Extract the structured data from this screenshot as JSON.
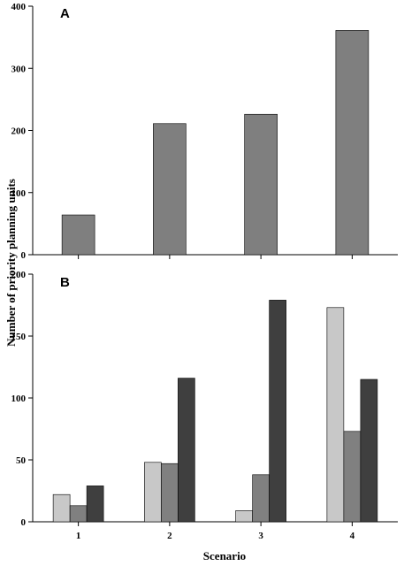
{
  "chart_data": [
    {
      "panel": "A",
      "type": "bar",
      "categories": [
        "1",
        "2",
        "3",
        "4"
      ],
      "series": [
        {
          "values": [
            64,
            211,
            226,
            361
          ],
          "color": "#7f7f7f"
        }
      ],
      "ylim": [
        0,
        400
      ],
      "yticks": [
        0,
        100,
        200,
        300,
        400
      ]
    },
    {
      "panel": "B",
      "type": "bar",
      "categories": [
        "1",
        "2",
        "3",
        "4"
      ],
      "series": [
        {
          "values": [
            22,
            48,
            9,
            173
          ],
          "color": "#c8c8c8"
        },
        {
          "values": [
            13,
            47,
            38,
            73
          ],
          "color": "#808080"
        },
        {
          "values": [
            29,
            116,
            179,
            115
          ],
          "color": "#3f3f3f"
        }
      ],
      "ylim": [
        0,
        200
      ],
      "yticks": [
        0,
        50,
        100,
        150,
        200
      ]
    }
  ],
  "labels": {
    "ylabel": "Number of priority planning units",
    "xlabel": "Scenario"
  }
}
